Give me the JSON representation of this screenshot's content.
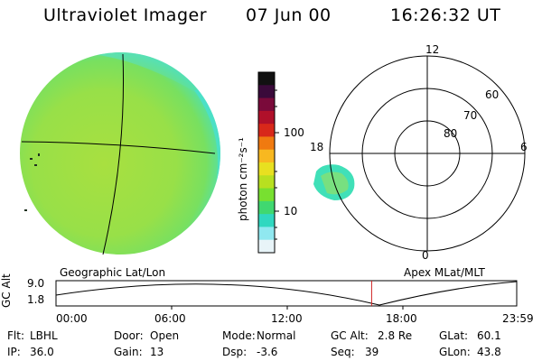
{
  "header": {
    "title": "Ultraviolet Imager",
    "date": "07 Jun 00",
    "time": "16:26:32 UT"
  },
  "colorbar": {
    "unit": "photon cm⁻²s⁻¹",
    "ticks": [
      "100",
      "10"
    ],
    "colors": [
      "#111111",
      "#3a0a3a",
      "#7a0a3a",
      "#b0102a",
      "#d8281a",
      "#f07a10",
      "#f8b820",
      "#e8e020",
      "#b8e020",
      "#78e030",
      "#40d870",
      "#30d8c0",
      "#90e8f0",
      "#e8f4f8"
    ]
  },
  "polar_plot": {
    "mlt_labels": [
      "12",
      "18",
      "6",
      "0"
    ],
    "lat_labels": [
      "60",
      "70",
      "80"
    ]
  },
  "altitude_strip": {
    "ylabel": "GC Alt",
    "ymax": "9.0",
    "ymin": "1.8",
    "left_title": "Geographic Lat/Lon",
    "right_title": "Apex MLat/MLT",
    "time_ticks": [
      "00:00",
      "06:00",
      "12:00",
      "18:00",
      "23:59"
    ],
    "current_time_fraction": 0.6851
  },
  "info": {
    "row1": [
      {
        "label": "Flt:",
        "value": "LBHL"
      },
      {
        "label": "Door:",
        "value": "Open"
      },
      {
        "label": "Mode:",
        "value": "Normal"
      },
      {
        "label": "GC Alt:",
        "value": "2.8 Re"
      },
      {
        "label": "GLat:",
        "value": "60.1"
      }
    ],
    "row2": [
      {
        "label": "IP:",
        "value": "36.0"
      },
      {
        "label": "Gain:",
        "value": "13"
      },
      {
        "label": "Dsp:",
        "value": "-3.6"
      },
      {
        "label": "Seq:",
        "value": "39"
      },
      {
        "label": "GLon:",
        "value": "43.8"
      }
    ]
  },
  "colors": {
    "earth_main": "#9ee048",
    "earth_edge": "#40e0c8",
    "aurora": "#40e0b0",
    "marker": "#d02020"
  }
}
